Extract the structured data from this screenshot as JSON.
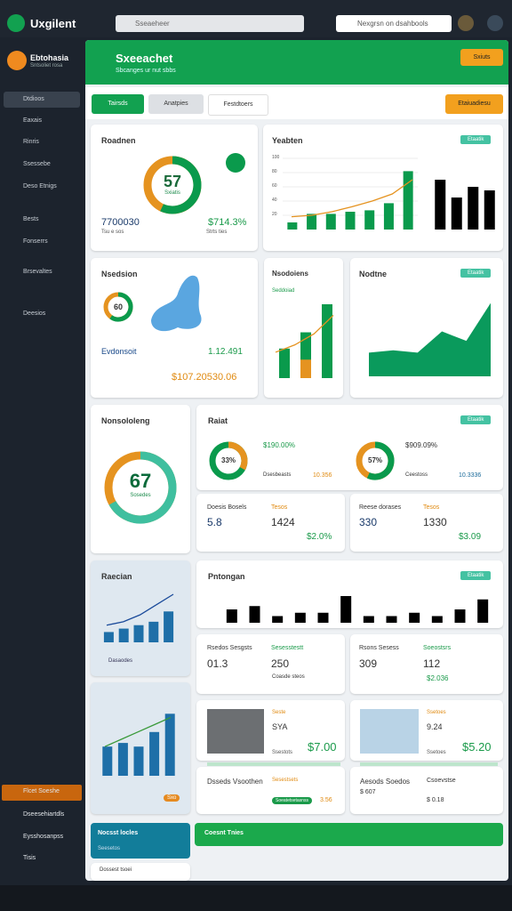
{
  "topbar": {
    "app": "Uxgilent",
    "search": "Sseaeheer",
    "search_right": "Nexgrsn on dsahbools"
  },
  "sidebar": {
    "brand": "Ebtohasia",
    "brand_sub": "Sntsoliet rosa",
    "items": [
      "Dtdioos",
      "Eaxais",
      "Rinris",
      "Ssessebe",
      "Deso Etnigs",
      "Bests",
      "Fonserrs",
      "Brsevaltes",
      "Deesios"
    ],
    "bottom": [
      "Flcet Soeshe",
      "Dseesehiartdls",
      "Eysshosanpss",
      "Tisis"
    ]
  },
  "header": {
    "title": "Sxeeachet",
    "subtitle": "Sbcanges ur nut sbbs",
    "button": "Sxiuts"
  },
  "toolbar": {
    "tabs": [
      "Tairsds",
      "Anatpies",
      "Festdtoers"
    ],
    "action": "Etaiuadiesu"
  },
  "cards": {
    "roadnen": {
      "title": "Roadnen",
      "gauge": 57,
      "gauge_sub": "Sxiatis",
      "left": "7700030",
      "right": "$714.3%",
      "left_sub": "Tsu e sos",
      "right_sub": "Strts ties"
    },
    "yeabten": {
      "title": "Yeabten",
      "button": "Etaatik",
      "yticks": [
        20,
        40,
        60,
        80,
        100
      ],
      "bars": [
        10,
        22,
        22,
        25,
        27,
        37,
        82
      ],
      "line": [
        18,
        20,
        25,
        32,
        40,
        50,
        70
      ],
      "bars2": [
        70,
        45,
        60,
        55
      ],
      "bars2_colors": [
        "#0a9a4c",
        "#e59320",
        "#0a9a4c",
        "#0a9a4c"
      ]
    },
    "nsedsion": {
      "title": "Nsedsion",
      "gauge": 60,
      "label": "Evdonsoit",
      "green": "1.12.491",
      "orange": "$107.20530.06"
    },
    "nsodoiens": {
      "title": "Nsodoiens",
      "sub": "Seddoiad",
      "bars": [
        40,
        62,
        100
      ],
      "bars_orange": [
        0,
        25,
        0
      ],
      "line": [
        35,
        45,
        60,
        85
      ]
    },
    "nodtne": {
      "title": "Nodtne",
      "button": "Etaatik",
      "area": [
        20,
        22,
        20,
        38,
        30,
        62
      ]
    },
    "nonsololeng": {
      "title": "Nonsololeng",
      "gauge": 67,
      "sub": "Sosedes"
    },
    "raiat": {
      "title": "Raiat",
      "button": "Etaatik",
      "donut1": 33,
      "donut1_label": "33%",
      "donut1_value": "$190.00%",
      "donut1_foot": "Dsesbeasts",
      "donut1_tag": "10.356",
      "donut2": 57,
      "donut2_label": "57%",
      "donut2_value": "$909.09%",
      "donut2_foot": "Ceestoss",
      "donut2_tag": "10.3336",
      "sub1": {
        "title": "Doesis Bosels",
        "tag": "Tesos",
        "a": "5.8",
        "b": "1424",
        "c": "$2.0%"
      },
      "sub2": {
        "title": "Reese dorases",
        "tag": "Tesos",
        "a": "330",
        "b": "1330",
        "c": "$3.09"
      }
    },
    "raecian": {
      "title": "Raecian",
      "bars": [
        15,
        20,
        25,
        30,
        45
      ],
      "line": [
        25,
        30,
        40,
        55,
        70
      ],
      "legend": "Dasaodes"
    },
    "pntongan": {
      "title": "Pntongan",
      "button": "Etaatik",
      "bars": [
        20,
        25,
        10,
        15,
        15,
        40,
        10,
        10,
        15,
        10,
        20,
        35
      ],
      "colors": [
        "#0a9a4c",
        "#0a9a4c",
        "#e5a020",
        "#0a9a4c",
        "#0a9a4c",
        "#e59320",
        "#0a9a4c",
        "#0a9a4c",
        "#0a9a4c",
        "#0a9a4c",
        "#e59320",
        "#e59320"
      ],
      "sub1": {
        "title": "Rsedos Sesgsts",
        "tag": "Sesesstestt",
        "a": "01.3",
        "b": "250",
        "foot": "Coasde steos"
      },
      "sub2": {
        "title": "Rsons Sesess",
        "tag": "Soeostsrs",
        "a": "309",
        "b": "112",
        "c": "$2.036"
      }
    },
    "trend": {
      "bars": [
        40,
        45,
        40,
        60,
        85
      ],
      "line": [
        40,
        50,
        60,
        70,
        80
      ],
      "tag": "Sxo"
    },
    "img1": {
      "tag": "Seste",
      "label": "SYA",
      "price": "$7.00",
      "foot": "Ssestots"
    },
    "img2": {
      "tag": "Ssetoes",
      "label": "9.24",
      "price": "$5.20",
      "foot": "Ssetoes"
    },
    "mini1": {
      "title": "Dsseds Vsoothen",
      "tag": "Sesestsets",
      "pill": "Soeatetsetasnss",
      "value": "3.56"
    },
    "mini2": {
      "title": "Aesods Soedos",
      "tag": "Csoevstse",
      "value": "$ 607",
      "extra": "$ 0.18"
    },
    "teal": {
      "title": "Nocsst locles",
      "sub": "Seesetos"
    },
    "greenbar": {
      "title": "Coesnt Tnies"
    },
    "foot": {
      "title": "Dossest tsoei"
    }
  }
}
